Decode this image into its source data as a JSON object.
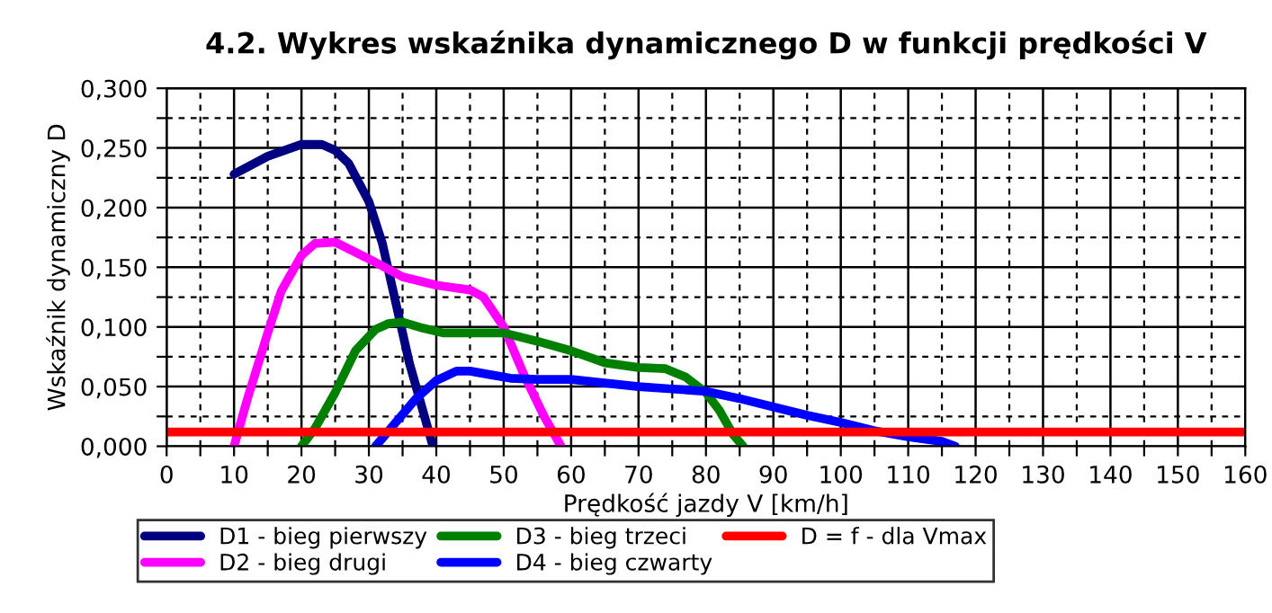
{
  "chart_data": {
    "type": "line",
    "title": "4.2. Wykres wskaźnika dynamicznego D w funkcji prędkości V",
    "xlabel": "Prędkość jazdy V [km/h]",
    "ylabel": "Wskaźnik dynamiczny D",
    "xlim": [
      0,
      160
    ],
    "ylim": [
      0,
      0.3
    ],
    "xticks": [
      0,
      {
        "value": 5,
        "label": null
      },
      10,
      {
        "value": 15,
        "label": null
      },
      20,
      {
        "value": 25,
        "label": null
      },
      30,
      {
        "value": 35,
        "label": null
      },
      40,
      {
        "value": 45,
        "label": null
      },
      50,
      {
        "value": 55,
        "label": null
      },
      60,
      {
        "value": 65,
        "label": null
      },
      70,
      {
        "value": 75,
        "label": null
      },
      80,
      {
        "value": 85,
        "label": null
      },
      90,
      {
        "value": 95,
        "label": null
      },
      100,
      {
        "value": 105,
        "label": null
      },
      110,
      {
        "value": 115,
        "label": null
      },
      120,
      {
        "value": 125,
        "label": null
      },
      130,
      {
        "value": 135,
        "label": null
      },
      140,
      {
        "value": 145,
        "label": null
      },
      150,
      {
        "value": 155,
        "label": null
      },
      160
    ],
    "yticks": [
      {
        "value": 0,
        "label": "0,000"
      },
      {
        "value": 0.025,
        "label": null
      },
      {
        "value": 0.05,
        "label": "0,050"
      },
      {
        "value": 0.075,
        "label": null
      },
      {
        "value": 0.1,
        "label": "0,100"
      },
      {
        "value": 0.125,
        "label": null
      },
      {
        "value": 0.15,
        "label": "0,150"
      },
      {
        "value": 0.175,
        "label": null
      },
      {
        "value": 0.2,
        "label": "0,200"
      },
      {
        "value": 0.225,
        "label": null
      },
      {
        "value": 0.25,
        "label": "0,250"
      },
      {
        "value": 0.275,
        "label": null
      },
      {
        "value": 0.3,
        "label": "0,300"
      }
    ],
    "grid": true,
    "legend": "bottom",
    "marker": "none",
    "line_style": "solid",
    "series": [
      {
        "name": "D1 - bieg pierwszy",
        "color": "#000080",
        "x": [
          10,
          15,
          20,
          23,
          25,
          27,
          30,
          32,
          34,
          36,
          38,
          39.5
        ],
        "values": [
          0.228,
          0.243,
          0.253,
          0.253,
          0.248,
          0.237,
          0.205,
          0.17,
          0.12,
          0.07,
          0.03,
          0
        ]
      },
      {
        "name": "D2 - bieg drugi",
        "color": "#ff00ff",
        "x": [
          10,
          12,
          15,
          17,
          20,
          22,
          25,
          30,
          35,
          40,
          45,
          47,
          50,
          53,
          56,
          58.5
        ],
        "values": [
          0,
          0.04,
          0.095,
          0.13,
          0.16,
          0.17,
          0.171,
          0.157,
          0.142,
          0.135,
          0.131,
          0.125,
          0.1,
          0.06,
          0.025,
          0
        ]
      },
      {
        "name": "D3 - bieg trzeci",
        "color": "#008000",
        "x": [
          20,
          22,
          25,
          28,
          31,
          33,
          35,
          38,
          41,
          45,
          50,
          55,
          60,
          65,
          70,
          74,
          77,
          80,
          82,
          84,
          85.5
        ],
        "values": [
          0,
          0.015,
          0.045,
          0.08,
          0.098,
          0.103,
          0.104,
          0.099,
          0.095,
          0.095,
          0.095,
          0.088,
          0.08,
          0.07,
          0.066,
          0.065,
          0.058,
          0.045,
          0.03,
          0.01,
          0
        ]
      },
      {
        "name": "D4 - bieg czwarty",
        "color": "#0000ff",
        "x": [
          31,
          34,
          37,
          40,
          43,
          45,
          48,
          51,
          55,
          60,
          65,
          70,
          75,
          80,
          85,
          90,
          95,
          100,
          105,
          110,
          115,
          117
        ],
        "values": [
          0,
          0.02,
          0.04,
          0.055,
          0.063,
          0.063,
          0.06,
          0.057,
          0.056,
          0.056,
          0.053,
          0.05,
          0.048,
          0.046,
          0.04,
          0.033,
          0.026,
          0.02,
          0.013,
          0.008,
          0.004,
          0
        ]
      },
      {
        "name": "D = f - dla Vmax",
        "color": "#ff0000",
        "x": [
          0,
          160
        ],
        "values": [
          0.012,
          0.012
        ]
      }
    ]
  }
}
